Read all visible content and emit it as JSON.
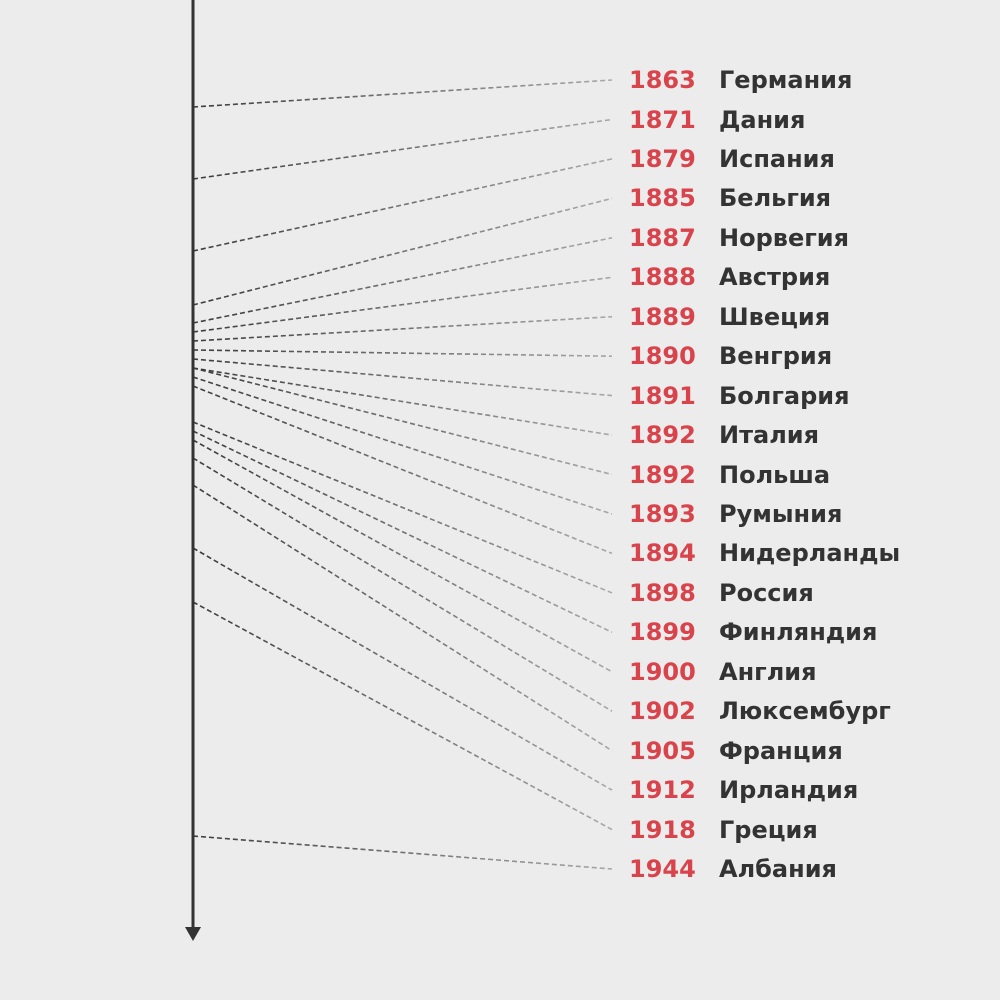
{
  "colors": {
    "background": "#ececec",
    "axis": "#333333",
    "year": "#d9444c",
    "country": "#333333",
    "connector_near": "#3c3c3c",
    "connector_far": "#a8a8a8"
  },
  "axis": {
    "direction": "down",
    "start_year": 1860,
    "end_year": 1950
  },
  "entries": [
    {
      "year": "1863",
      "country": "Германия"
    },
    {
      "year": "1871",
      "country": "Дания"
    },
    {
      "year": "1879",
      "country": "Испания"
    },
    {
      "year": "1885",
      "country": "Бельгия"
    },
    {
      "year": "1887",
      "country": "Норвегия"
    },
    {
      "year": "1888",
      "country": "Австрия"
    },
    {
      "year": "1889",
      "country": "Швеция"
    },
    {
      "year": "1890",
      "country": "Венгрия"
    },
    {
      "year": "1891",
      "country": "Болгария"
    },
    {
      "year": "1892",
      "country": "Италия"
    },
    {
      "year": "1892",
      "country": "Польша"
    },
    {
      "year": "1893",
      "country": "Румыния"
    },
    {
      "year": "1894",
      "country": "Нидерланды"
    },
    {
      "year": "1898",
      "country": "Россия"
    },
    {
      "year": "1899",
      "country": "Финляндия"
    },
    {
      "year": "1900",
      "country": "Англия"
    },
    {
      "year": "1902",
      "country": "Люксембург"
    },
    {
      "year": "1905",
      "country": "Франция"
    },
    {
      "year": "1912",
      "country": "Ирландия"
    },
    {
      "year": "1918",
      "country": "Греция"
    },
    {
      "year": "1944",
      "country": "Албания"
    }
  ]
}
